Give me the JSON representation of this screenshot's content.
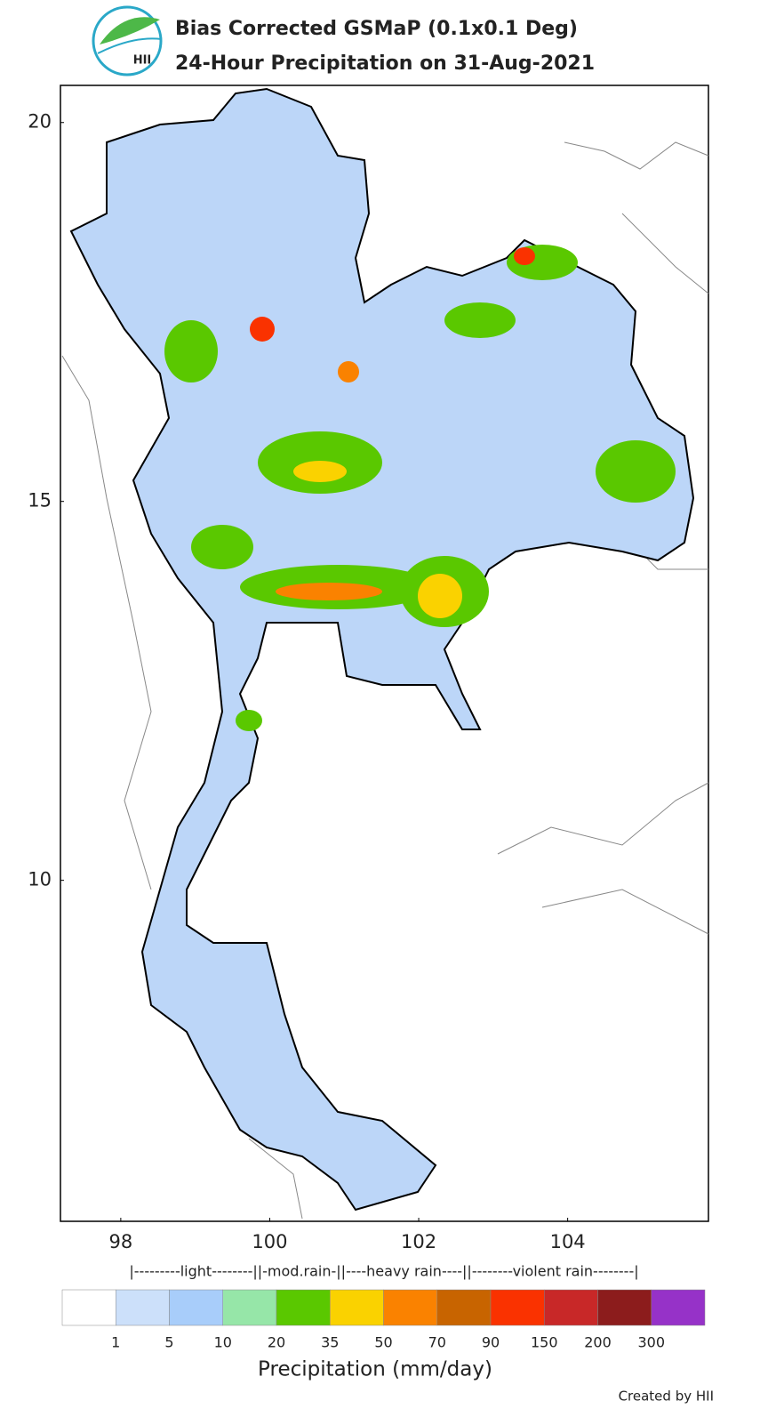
{
  "header": {
    "title": "Bias Corrected GSMaP (0.1x0.1 Deg)",
    "subtitle": "24-Hour Precipitation on 31-Aug-2021",
    "logo": "HII"
  },
  "map": {
    "xlim": [
      97.19,
      105.89
    ],
    "ylim": [
      5.5,
      20.49
    ],
    "xticks": [
      98,
      100,
      102,
      104
    ],
    "yticks": [
      10,
      15,
      20
    ]
  },
  "colorbar": {
    "classes": "|---------light--------||-mod.rain-||----heavy rain----||--------violent rain--------|",
    "colors": [
      "#ffffff",
      "#cce0fa",
      "#a8cdfa",
      "#96e6a8",
      "#5ac800",
      "#fad200",
      "#fa8200",
      "#c86400",
      "#fa3200",
      "#c82828",
      "#8c1c1c",
      "#9632c8"
    ],
    "ticks": [
      1,
      5,
      10,
      20,
      35,
      50,
      70,
      90,
      150,
      200,
      300
    ],
    "title": "Precipitation (mm/day)"
  },
  "footer": "Created by HII"
}
